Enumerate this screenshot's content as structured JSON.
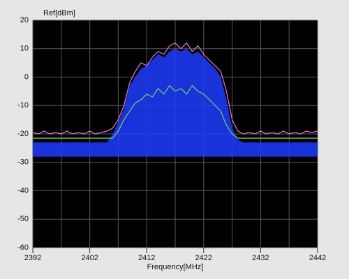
{
  "chart_data": {
    "type": "line",
    "ylabel": "Ref[dBm]",
    "xlabel": "Frequency[MHz]",
    "xlim": [
      2392,
      2442
    ],
    "xticks": [
      2392,
      2402,
      2412,
      2422,
      2432,
      2442
    ],
    "xminor": [
      2397,
      2407,
      2417,
      2427,
      2437
    ],
    "ylim": [
      -60,
      20
    ],
    "yticks": [
      20,
      10,
      0,
      -10,
      -20,
      -30,
      -40,
      -50,
      -60
    ],
    "grid": true,
    "x": [
      2392,
      2393,
      2394,
      2395,
      2396,
      2397,
      2398,
      2399,
      2400,
      2401,
      2402,
      2403,
      2404,
      2405,
      2406,
      2407,
      2408,
      2409,
      2410,
      2411,
      2412,
      2413,
      2414,
      2415,
      2416,
      2417,
      2418,
      2419,
      2420,
      2421,
      2422,
      2423,
      2424,
      2425,
      2426,
      2427,
      2428,
      2429,
      2430,
      2431,
      2432,
      2433,
      2434,
      2435,
      2436,
      2437,
      2438,
      2439,
      2440,
      2441,
      2442
    ],
    "series": [
      {
        "color": "#1e3cff",
        "fill": true,
        "values": [
          -23,
          -23,
          -23,
          -23,
          -23,
          -23,
          -23,
          -23,
          -23,
          -23,
          -23,
          -23,
          -23,
          -23,
          -20,
          -16,
          -11,
          -3,
          0,
          3,
          4,
          6,
          8,
          7,
          9,
          10,
          9,
          10,
          8,
          9,
          7,
          5,
          3,
          0,
          -8,
          -18,
          -22,
          -23,
          -23,
          -23,
          -23,
          -23,
          -23,
          -23,
          -23,
          -23,
          -23,
          -23,
          -23,
          -23,
          -23
        ],
        "lows": [
          -28,
          -28,
          -28,
          -28,
          -28,
          -28,
          -28,
          -28,
          -28,
          -28,
          -28,
          -28,
          -28,
          -28,
          -28,
          -28,
          -28,
          -28,
          -28,
          -28,
          -28,
          -28,
          -28,
          -28,
          -28,
          -28,
          -28,
          -28,
          -28,
          -28,
          -28,
          -28,
          -28,
          -28,
          -28,
          -28,
          -28,
          -28,
          -28,
          -28,
          -28,
          -28,
          -28,
          -28,
          -28,
          -28,
          -28,
          -28,
          -28,
          -28,
          -28
        ]
      },
      {
        "color": "#e87ad8",
        "values": [
          -19.5,
          -20,
          -19,
          -20,
          -19.5,
          -20,
          -19,
          -20,
          -19.5,
          -20,
          -19,
          -20,
          -19.5,
          -19,
          -18,
          -15,
          -10,
          -2,
          2,
          5,
          4,
          7,
          9,
          8,
          11,
          12,
          10,
          12,
          9,
          11,
          8,
          6,
          4,
          2,
          -5,
          -15,
          -19,
          -20,
          -19.5,
          -20,
          -19,
          -20,
          -19.5,
          -20,
          -19,
          -20,
          -19.5,
          -20,
          -19,
          -19.5,
          -19
        ]
      },
      {
        "color": "#6fd36f",
        "values": [
          -21.5,
          -21.5,
          -21.5,
          -21.5,
          -21.5,
          -21.5,
          -21.5,
          -21.5,
          -21.5,
          -21.5,
          -21.5,
          -21.5,
          -21.5,
          -21.5,
          -21.5,
          -19,
          -15,
          -12,
          -9,
          -8,
          -6,
          -7,
          -4,
          -6,
          -3,
          -5,
          -4,
          -6,
          -3,
          -5,
          -6,
          -8,
          -10,
          -12,
          -17,
          -20,
          -21.5,
          -21.5,
          -21.5,
          -21.5,
          -21.5,
          -21.5,
          -21.5,
          -21.5,
          -21.5,
          -21.5,
          -21.5,
          -21.5,
          -21.5,
          -21.5,
          -21.5
        ]
      }
    ]
  }
}
